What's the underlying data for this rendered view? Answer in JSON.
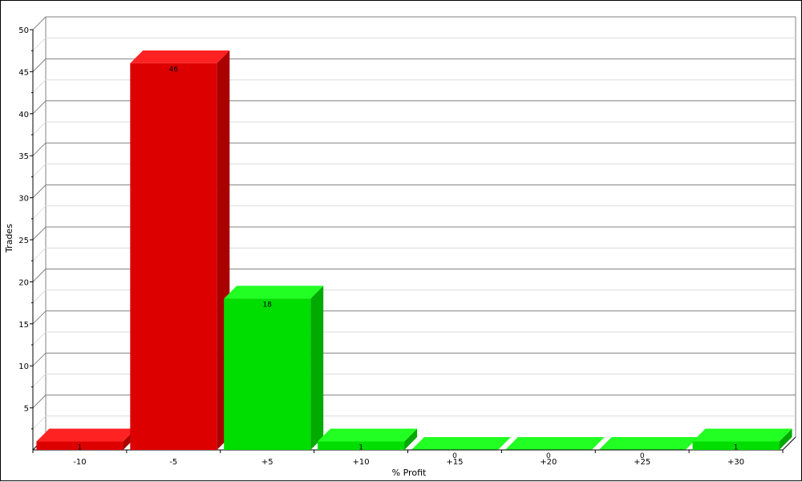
{
  "chart_data": {
    "type": "bar",
    "categories": [
      "-10",
      "-5",
      "+5",
      "+10",
      "+15",
      "+20",
      "+25",
      "+30"
    ],
    "values": [
      1,
      46,
      18,
      1,
      0,
      0,
      0,
      1
    ],
    "data_labels": [
      "1",
      "46",
      "18",
      "1",
      "0",
      "0",
      "0",
      "1"
    ],
    "bar_groups": [
      "loss",
      "loss",
      "profit",
      "profit",
      "profit",
      "profit",
      "profit",
      "profit"
    ],
    "xlabel": "% Profit",
    "ylabel": "Trades",
    "ylim": [
      0,
      50
    ],
    "yticks": [
      5,
      10,
      15,
      20,
      25,
      30,
      35,
      40,
      45,
      50
    ],
    "ytick_labels": [
      "5",
      "10",
      "15",
      "20",
      "25",
      "30",
      "35",
      "40",
      "45",
      "50"
    ],
    "grid": true,
    "style": "3d",
    "colors": {
      "loss_front": "#dd0000",
      "loss_top": "#ff2222",
      "loss_side": "#aa0000",
      "profit_front": "#00dd00",
      "profit_top": "#22ff22",
      "profit_side": "#00aa00",
      "grid_major": "#808080",
      "grid_minor": "#dcdcdc"
    }
  }
}
